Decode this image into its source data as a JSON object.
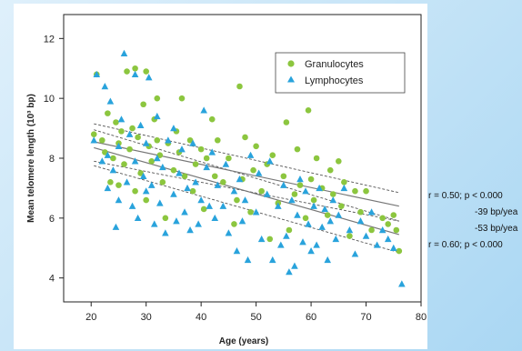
{
  "chart_data": {
    "type": "scatter",
    "title": "",
    "xlabel": "Age (years)",
    "ylabel": "Mean telomere length (10³ bp)",
    "xlim": [
      15,
      80
    ],
    "ylim": [
      3.2,
      12.8
    ],
    "x_ticks": [
      20,
      30,
      40,
      50,
      60,
      70,
      80
    ],
    "y_ticks": [
      4,
      6,
      8,
      10,
      12
    ],
    "grid": false,
    "legend_position": "top-right",
    "series": [
      {
        "name": "Granulocytes",
        "marker": "circle",
        "color": "#8cc63f",
        "fit": {
          "x0": 20.5,
          "y0": 8.55,
          "x1": 76,
          "y1": 6.4
        },
        "points": [
          [
            20.5,
            8.8
          ],
          [
            21,
            10.8
          ],
          [
            22,
            8.6
          ],
          [
            22.5,
            8.2
          ],
          [
            23,
            9.5
          ],
          [
            23.5,
            7.2
          ],
          [
            24,
            8.0
          ],
          [
            24.5,
            9.2
          ],
          [
            25,
            8.5
          ],
          [
            25,
            7.1
          ],
          [
            25.5,
            8.9
          ],
          [
            26,
            7.8
          ],
          [
            26.5,
            10.9
          ],
          [
            27,
            8.3
          ],
          [
            27.5,
            9.0
          ],
          [
            28,
            11.0
          ],
          [
            28,
            6.9
          ],
          [
            28.5,
            8.7
          ],
          [
            29,
            7.5
          ],
          [
            29.5,
            9.8
          ],
          [
            30,
            10.9
          ],
          [
            30,
            6.6
          ],
          [
            30.5,
            8.4
          ],
          [
            31,
            7.9
          ],
          [
            31.5,
            9.3
          ],
          [
            32,
            8.6
          ],
          [
            32,
            10.0
          ],
          [
            32.5,
            8.1
          ],
          [
            33,
            7.2
          ],
          [
            33.5,
            6.0
          ],
          [
            34,
            8.5
          ],
          [
            35,
            7.6
          ],
          [
            35.5,
            8.9
          ],
          [
            36,
            8.2
          ],
          [
            36.5,
            10.0
          ],
          [
            37,
            7.4
          ],
          [
            38,
            8.6
          ],
          [
            38.5,
            6.9
          ],
          [
            39,
            7.8
          ],
          [
            40,
            8.3
          ],
          [
            40.5,
            6.3
          ],
          [
            41,
            8.0
          ],
          [
            42,
            9.3
          ],
          [
            42.5,
            7.4
          ],
          [
            43,
            8.6
          ],
          [
            44,
            7.2
          ],
          [
            45,
            8.0
          ],
          [
            46,
            5.8
          ],
          [
            46.5,
            6.6
          ],
          [
            47,
            10.4
          ],
          [
            47.5,
            7.3
          ],
          [
            48,
            8.7
          ],
          [
            49,
            6.2
          ],
          [
            49.5,
            7.6
          ],
          [
            50,
            8.4
          ],
          [
            51,
            6.9
          ],
          [
            52,
            7.8
          ],
          [
            52.5,
            5.3
          ],
          [
            53,
            8.1
          ],
          [
            54,
            6.5
          ],
          [
            55,
            7.4
          ],
          [
            55.5,
            9.2
          ],
          [
            56,
            5.6
          ],
          [
            57,
            6.8
          ],
          [
            57.5,
            8.3
          ],
          [
            58,
            7.1
          ],
          [
            59,
            6.0
          ],
          [
            59.5,
            9.6
          ],
          [
            60,
            7.3
          ],
          [
            60.5,
            6.6
          ],
          [
            61,
            8.0
          ],
          [
            62,
            7.0
          ],
          [
            63,
            6.1
          ],
          [
            63.5,
            7.6
          ],
          [
            64,
            6.8
          ],
          [
            65,
            7.9
          ],
          [
            65.5,
            6.4
          ],
          [
            66,
            7.2
          ],
          [
            67,
            5.4
          ],
          [
            68,
            6.9
          ],
          [
            69,
            6.2
          ],
          [
            70,
            6.9
          ],
          [
            71,
            5.6
          ],
          [
            73,
            6.0
          ],
          [
            74,
            5.8
          ],
          [
            75,
            6.1
          ],
          [
            75.5,
            5.6
          ],
          [
            76,
            4.9
          ]
        ]
      },
      {
        "name": "Lymphocytes",
        "marker": "triangle",
        "color": "#29a3dc",
        "fit": {
          "x0": 20.5,
          "y0": 8.35,
          "x1": 76,
          "y1": 5.45
        },
        "points": [
          [
            20.5,
            8.6
          ],
          [
            21,
            10.8
          ],
          [
            22,
            7.9
          ],
          [
            22.5,
            10.4
          ],
          [
            23,
            8.1
          ],
          [
            23,
            7.0
          ],
          [
            23.5,
            9.9
          ],
          [
            24,
            7.6
          ],
          [
            24.5,
            5.7
          ],
          [
            25,
            8.4
          ],
          [
            25,
            6.6
          ],
          [
            25.5,
            9.3
          ],
          [
            26,
            11.5
          ],
          [
            26.5,
            7.2
          ],
          [
            27,
            8.8
          ],
          [
            27.5,
            6.4
          ],
          [
            28,
            10.8
          ],
          [
            28,
            7.9
          ],
          [
            28.5,
            6.0
          ],
          [
            29,
            9.1
          ],
          [
            29.5,
            7.4
          ],
          [
            30,
            8.5
          ],
          [
            30,
            6.9
          ],
          [
            30.5,
            10.7
          ],
          [
            31,
            7.1
          ],
          [
            31.5,
            5.8
          ],
          [
            32,
            9.4
          ],
          [
            32,
            8.0
          ],
          [
            32.5,
            6.5
          ],
          [
            33,
            7.7
          ],
          [
            33.5,
            5.5
          ],
          [
            34,
            8.6
          ],
          [
            35,
            6.8
          ],
          [
            35,
            9.0
          ],
          [
            35.5,
            5.9
          ],
          [
            36,
            7.5
          ],
          [
            36.5,
            8.3
          ],
          [
            37,
            6.2
          ],
          [
            37.5,
            7.0
          ],
          [
            38,
            5.6
          ],
          [
            38.5,
            8.5
          ],
          [
            39,
            7.2
          ],
          [
            39.5,
            5.8
          ],
          [
            40,
            6.6
          ],
          [
            40.5,
            9.6
          ],
          [
            41,
            7.7
          ],
          [
            41.5,
            6.4
          ],
          [
            42,
            8.2
          ],
          [
            42.5,
            6.0
          ],
          [
            43,
            7.1
          ],
          [
            44,
            6.4
          ],
          [
            44.5,
            7.8
          ],
          [
            45,
            5.5
          ],
          [
            46,
            6.9
          ],
          [
            46.5,
            4.9
          ],
          [
            47,
            7.3
          ],
          [
            47.5,
            5.9
          ],
          [
            48,
            6.6
          ],
          [
            48.5,
            4.6
          ],
          [
            49,
            8.1
          ],
          [
            50,
            6.2
          ],
          [
            50.5,
            7.5
          ],
          [
            51,
            5.3
          ],
          [
            52,
            6.8
          ],
          [
            52.5,
            7.9
          ],
          [
            53,
            4.6
          ],
          [
            54,
            6.4
          ],
          [
            54.5,
            5.1
          ],
          [
            55,
            7.1
          ],
          [
            55.5,
            5.4
          ],
          [
            56,
            4.2
          ],
          [
            56.5,
            6.6
          ],
          [
            57,
            4.4
          ],
          [
            57.5,
            6.1
          ],
          [
            58,
            7.3
          ],
          [
            58.5,
            5.2
          ],
          [
            59,
            6.9
          ],
          [
            59.5,
            5.8
          ],
          [
            60,
            4.9
          ],
          [
            60.5,
            6.4
          ],
          [
            61,
            5.1
          ],
          [
            61.5,
            7.0
          ],
          [
            62,
            5.7
          ],
          [
            62.5,
            6.3
          ],
          [
            63,
            4.6
          ],
          [
            63.5,
            5.9
          ],
          [
            64,
            6.6
          ],
          [
            64.5,
            5.3
          ],
          [
            65,
            6.1
          ],
          [
            66,
            7.0
          ],
          [
            67,
            5.6
          ],
          [
            68,
            4.8
          ],
          [
            69,
            5.9
          ],
          [
            70,
            5.4
          ],
          [
            71,
            6.2
          ],
          [
            72,
            5.1
          ],
          [
            73,
            5.6
          ],
          [
            74,
            5.3
          ],
          [
            75,
            5.0
          ],
          [
            76.5,
            3.8
          ]
        ]
      }
    ],
    "bands": [
      {
        "upper": {
          "x0": 20.5,
          "y0": 9.15,
          "x1": 76,
          "y1": 6.85
        },
        "lower": {
          "x0": 20.5,
          "y0": 7.9,
          "x1": 76,
          "y1": 5.9
        }
      },
      {
        "upper": {
          "x0": 20.5,
          "y0": 8.95,
          "x1": 76,
          "y1": 5.9
        },
        "lower": {
          "x0": 20.5,
          "y0": 7.75,
          "x1": 76,
          "y1": 4.85
        }
      }
    ],
    "annotations": [
      "r = 0.50; p < 0.000",
      "-39 bp/yea",
      "-53 bp/yea",
      "r = 0.60; p < 0.000"
    ]
  }
}
